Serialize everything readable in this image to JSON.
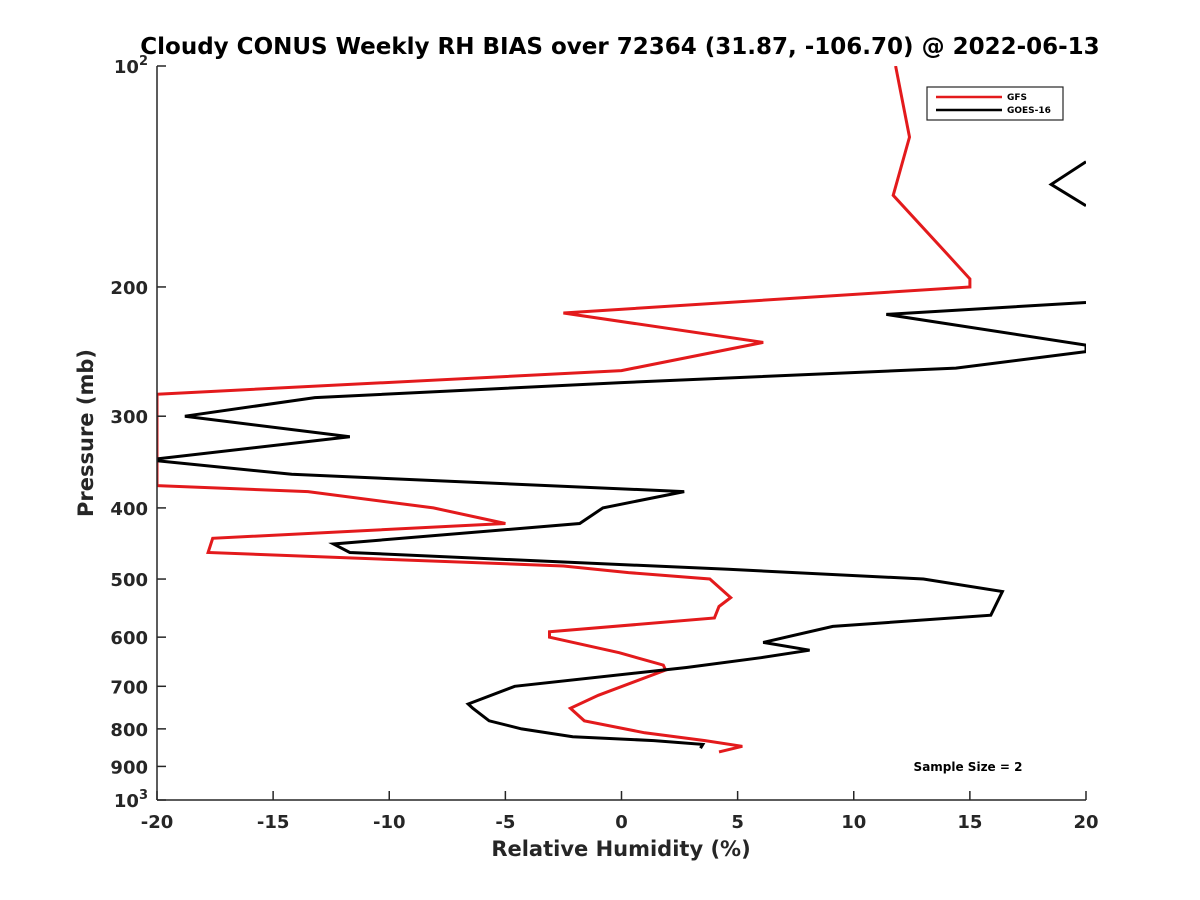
{
  "chart_data": {
    "type": "line",
    "title": "Cloudy CONUS Weekly RH BIAS over 72364 (31.87, -106.70) @ 2022-06-13",
    "xlabel": "Relative Humidity (%)",
    "ylabel": "Pressure (mb)",
    "xlim": [
      -20,
      20
    ],
    "ylim": [
      100,
      1000
    ],
    "y_scale": "log",
    "y_reversed": true,
    "grid": false,
    "legend_position": "top-right",
    "x_ticks": [
      "-20",
      "-15",
      "-10",
      "-5",
      "0",
      "5",
      "10",
      "15",
      "20"
    ],
    "y_ticks": [
      {
        "value": 100,
        "base": "10",
        "exp": "2"
      },
      {
        "value": 200,
        "label": "200"
      },
      {
        "value": 300,
        "label": "300"
      },
      {
        "value": 400,
        "label": "400"
      },
      {
        "value": 500,
        "label": "500"
      },
      {
        "value": 600,
        "label": "600"
      },
      {
        "value": 700,
        "label": "700"
      },
      {
        "value": 800,
        "label": "800"
      },
      {
        "value": 900,
        "label": "900"
      },
      {
        "value": 1000,
        "base": "10",
        "exp": "3"
      }
    ],
    "annotation": "Sample Size = 2",
    "series": [
      {
        "name": "GFS",
        "color": "#e31a1c",
        "points": [
          [
            11.8,
            100
          ],
          [
            12.4,
            125
          ],
          [
            11.7,
            150
          ],
          [
            14,
            180
          ],
          [
            15,
            195
          ],
          [
            15,
            200
          ],
          [
            -2.5,
            217
          ],
          [
            6.1,
            238
          ],
          [
            0,
            260
          ],
          [
            -20,
            280
          ],
          [
            -20,
            373
          ],
          [
            -13.5,
            380
          ],
          [
            -8.1,
            400
          ],
          [
            -5,
            420
          ],
          [
            -17.6,
            440
          ],
          [
            -17.8,
            460
          ],
          [
            -2.5,
            480
          ],
          [
            0.3,
            490
          ],
          [
            3.8,
            500
          ],
          [
            4.7,
            530
          ],
          [
            4.2,
            545
          ],
          [
            4.0,
            565
          ],
          [
            -3.1,
            590
          ],
          [
            -3.1,
            600
          ],
          [
            -0.1,
            630
          ],
          [
            1.8,
            655
          ],
          [
            1.9,
            665
          ],
          [
            -1.0,
            720
          ],
          [
            -2.2,
            750
          ],
          [
            -1.6,
            780
          ],
          [
            1.0,
            810
          ],
          [
            3.6,
            830
          ],
          [
            5.2,
            845
          ],
          [
            4.2,
            860
          ]
        ]
      },
      {
        "name": "GOES-16",
        "color": "#000000",
        "points": [
          [
            20,
            135
          ],
          [
            18.5,
            145
          ],
          [
            20,
            155
          ],
          [
            null,
            null
          ],
          [
            20,
            210
          ],
          [
            11.4,
            218
          ],
          [
            20,
            240
          ],
          [
            20,
            245
          ],
          [
            14.4,
            258
          ],
          [
            0,
            270
          ],
          [
            -13.2,
            283
          ],
          [
            -18.8,
            300
          ],
          [
            -11.7,
            320
          ],
          [
            -20,
            343
          ],
          [
            -20,
            345
          ],
          [
            -14.2,
            360
          ],
          [
            2.7,
            380
          ],
          [
            -0.8,
            400
          ],
          [
            -1.8,
            420
          ],
          [
            -12.4,
            448
          ],
          [
            -11.7,
            460
          ],
          [
            4.6,
            485
          ],
          [
            13.0,
            500
          ],
          [
            16.4,
            520
          ],
          [
            15.9,
            560
          ],
          [
            9.1,
            580
          ],
          [
            6.1,
            610
          ],
          [
            8.1,
            625
          ],
          [
            6.0,
            640
          ],
          [
            2.8,
            660
          ],
          [
            -4.6,
            700
          ],
          [
            -6.6,
            740
          ],
          [
            -6.4,
            750
          ],
          [
            -5.7,
            780
          ],
          [
            -4.3,
            800
          ],
          [
            -2.1,
            820
          ],
          [
            1.4,
            830
          ],
          [
            3.5,
            840
          ],
          [
            3.4,
            850
          ]
        ]
      }
    ]
  }
}
